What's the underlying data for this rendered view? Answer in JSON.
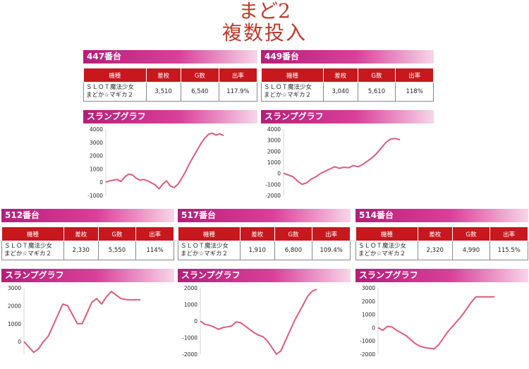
{
  "title_line1": "まど2",
  "title_line2": "複数投入",
  "table_headers": [
    "機種",
    "差枚",
    "G数",
    "出率"
  ],
  "graph_label": "スランプグラフ",
  "line_color": "#e05a7a",
  "machines": [
    {
      "label": "447番台",
      "name_line1": "ＳＬＯＴ魔法少女",
      "name_line2": "まどか☆マギカ２",
      "diff": "3,510",
      "games": "6,540",
      "rate": "117.9%",
      "chart_data": {
        "type": "line",
        "ylim": [
          -1000,
          4000
        ],
        "yticks": [
          "4000",
          "3000",
          "2000",
          "1000",
          "0",
          "-1000"
        ],
        "x": [
          0,
          1,
          2,
          3,
          4,
          5,
          6,
          7,
          8,
          9,
          10,
          11,
          12,
          13,
          14,
          15,
          16,
          17,
          18,
          19,
          20,
          21,
          22,
          23,
          24,
          25,
          26,
          27,
          28,
          29,
          30,
          31
        ],
        "values": [
          0,
          100,
          150,
          200,
          50,
          400,
          600,
          550,
          300,
          150,
          200,
          100,
          -50,
          -200,
          -500,
          -150,
          100,
          -300,
          -400,
          -150,
          300,
          800,
          1400,
          1900,
          2400,
          2900,
          3300,
          3600,
          3700,
          3550,
          3650,
          3510
        ]
      }
    },
    {
      "label": "449番台",
      "name_line1": "ＳＬＯＴ魔法少女",
      "name_line2": "まどか☆マギカ２",
      "diff": "3,040",
      "games": "5,610",
      "rate": "118%",
      "chart_data": {
        "type": "line",
        "ylim": [
          -2000,
          4000
        ],
        "yticks": [
          "4000",
          "3000",
          "2000",
          "1000",
          "0",
          "-1000",
          "-2000"
        ],
        "x": [
          0,
          1,
          2,
          3,
          4,
          5,
          6,
          7,
          8,
          9,
          10,
          11,
          12,
          13,
          14,
          15,
          16,
          17,
          18,
          19,
          20,
          21,
          22,
          23,
          24,
          25
        ],
        "values": [
          0,
          -150,
          -300,
          -700,
          -1000,
          -850,
          -500,
          -300,
          0,
          200,
          400,
          600,
          450,
          550,
          500,
          700,
          600,
          800,
          1100,
          1400,
          1800,
          2300,
          2800,
          3100,
          3150,
          3040
        ]
      }
    },
    {
      "label": "512番台",
      "name_line1": "ＳＬＯＴ魔法少女",
      "name_line2": "まどか☆マギカ２",
      "diff": "2,330",
      "games": "5,550",
      "rate": "114%",
      "chart_data": {
        "type": "line",
        "ylim": [
          -700,
          3000
        ],
        "yticks": [
          "3000",
          "2000",
          "1000",
          "0"
        ],
        "x": [
          0,
          1,
          2,
          3,
          4,
          5,
          6,
          7,
          8,
          9,
          10,
          11,
          12,
          13,
          14,
          15,
          16,
          17,
          18,
          19,
          20,
          21,
          22,
          23,
          24
        ],
        "values": [
          0,
          -300,
          -600,
          -400,
          0,
          300,
          900,
          1500,
          2100,
          2000,
          1500,
          1000,
          1000,
          1600,
          2200,
          2400,
          2100,
          2500,
          2800,
          2600,
          2400,
          2350,
          2330,
          2340,
          2330
        ]
      }
    },
    {
      "label": "517番台",
      "name_line1": "ＳＬＯＴ魔法少女",
      "name_line2": "まどか☆マギカ２",
      "diff": "1,910",
      "games": "6,800",
      "rate": "109.4%",
      "chart_data": {
        "type": "line",
        "ylim": [
          -2000,
          2000
        ],
        "yticks": [
          "2000",
          "1000",
          "0",
          "-1000",
          "-2000"
        ],
        "x": [
          0,
          1,
          2,
          3,
          4,
          5,
          6,
          7,
          8,
          9,
          10,
          11,
          12,
          13,
          14,
          15,
          16,
          17,
          18,
          19,
          20,
          21,
          22,
          23,
          24,
          25,
          26
        ],
        "values": [
          0,
          -200,
          -250,
          -350,
          -500,
          -400,
          -350,
          -300,
          -50,
          -100,
          -300,
          -500,
          -700,
          -850,
          -950,
          -1200,
          -1600,
          -2000,
          -1800,
          -1200,
          -600,
          0,
          500,
          1000,
          1500,
          1800,
          1910
        ]
      }
    },
    {
      "label": "514番台",
      "name_line1": "ＳＬＯＴ魔法少女",
      "name_line2": "まどか☆マギカ２",
      "diff": "2,320",
      "games": "4,990",
      "rate": "115.5%",
      "chart_data": {
        "type": "line",
        "ylim": [
          -2000,
          3000
        ],
        "yticks": [
          "3000",
          "2000",
          "1000",
          "0",
          "-1000",
          "-2000"
        ],
        "x": [
          0,
          1,
          2,
          3,
          4,
          5,
          6,
          7,
          8,
          9,
          10,
          11,
          12,
          13,
          14,
          15,
          16,
          17,
          18,
          19,
          20,
          21,
          22,
          23,
          24,
          25
        ],
        "values": [
          0,
          -200,
          100,
          50,
          -200,
          -400,
          -600,
          -900,
          -1200,
          -1400,
          -1500,
          -1550,
          -1600,
          -1300,
          -800,
          -300,
          100,
          500,
          900,
          1400,
          1900,
          2320,
          2320,
          2320,
          2320,
          2320
        ]
      }
    }
  ]
}
